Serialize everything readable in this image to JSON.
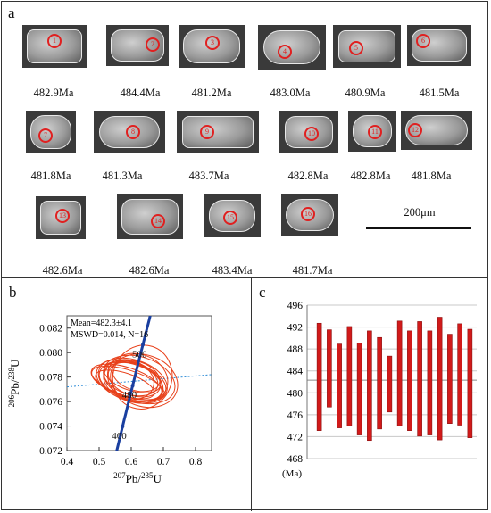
{
  "panels": {
    "a": {
      "label": "a",
      "grains": [
        {
          "id": "1",
          "age": "482.9Ma"
        },
        {
          "id": "2",
          "age": "484.4Ma"
        },
        {
          "id": "3",
          "age": "481.2Ma"
        },
        {
          "id": "4",
          "age": "483.0Ma"
        },
        {
          "id": "5",
          "age": "480.9Ma"
        },
        {
          "id": "6",
          "age": "481.5Ma"
        },
        {
          "id": "7",
          "age": "481.8Ma"
        },
        {
          "id": "8",
          "age": "481.3Ma"
        },
        {
          "id": "9",
          "age": "483.7Ma"
        },
        {
          "id": "10",
          "age": "482.8Ma"
        },
        {
          "id": "11",
          "age": "482.8Ma"
        },
        {
          "id": "12",
          "age": "481.8Ma"
        },
        {
          "id": "13",
          "age": "482.6Ma"
        },
        {
          "id": "14",
          "age": "482.6Ma"
        },
        {
          "id": "15",
          "age": "483.4Ma"
        },
        {
          "id": "16",
          "age": "481.7Ma"
        }
      ],
      "scale_label": "200μm"
    },
    "b": {
      "label": "b"
    },
    "c": {
      "label": "c"
    }
  },
  "chart_data": [
    {
      "type": "scatter",
      "subtype": "concordia",
      "xlabel_sup": "207",
      "xlabel_main": "Pb/",
      "xlabel_sup2": "235",
      "xlabel_end": "U",
      "ylabel_sup": "206",
      "ylabel_main": "Pb/",
      "ylabel_sup2": "238",
      "ylabel_end": "U",
      "xlim": [
        0.4,
        0.85
      ],
      "ylim": [
        0.072,
        0.083
      ],
      "xticks": [
        "0.4",
        "0.5",
        "0.6",
        "0.7",
        "0.8"
      ],
      "yticks": [
        "0.072",
        "0.074",
        "0.076",
        "0.078",
        "0.080",
        "0.082"
      ],
      "annotation_line1": "Mean=482.3±4.1",
      "annotation_line2": "MSWD=0.014, N=16",
      "concordia_ages": [
        "460",
        "480",
        "500"
      ],
      "concordia_color": "#1a3fa0",
      "ellipse_color": "#e8401a",
      "ellipses": [
        {
          "x": 0.595,
          "y": 0.0777,
          "rx": 0.06,
          "ry": 0.0028
        },
        {
          "x": 0.62,
          "y": 0.0779,
          "rx": 0.075,
          "ry": 0.0025
        },
        {
          "x": 0.585,
          "y": 0.0776,
          "rx": 0.045,
          "ry": 0.003
        },
        {
          "x": 0.61,
          "y": 0.0778,
          "rx": 0.05,
          "ry": 0.0022
        },
        {
          "x": 0.6,
          "y": 0.0776,
          "rx": 0.055,
          "ry": 0.0027
        },
        {
          "x": 0.635,
          "y": 0.078,
          "rx": 0.1,
          "ry": 0.0024
        },
        {
          "x": 0.59,
          "y": 0.0775,
          "rx": 0.04,
          "ry": 0.0031
        },
        {
          "x": 0.605,
          "y": 0.0777,
          "rx": 0.065,
          "ry": 0.0029
        },
        {
          "x": 0.615,
          "y": 0.0781,
          "rx": 0.045,
          "ry": 0.002
        },
        {
          "x": 0.58,
          "y": 0.0774,
          "rx": 0.035,
          "ry": 0.0025
        },
        {
          "x": 0.625,
          "y": 0.0778,
          "rx": 0.07,
          "ry": 0.003
        },
        {
          "x": 0.598,
          "y": 0.0779,
          "rx": 0.05,
          "ry": 0.0023
        },
        {
          "x": 0.612,
          "y": 0.0776,
          "rx": 0.055,
          "ry": 0.0026
        },
        {
          "x": 0.592,
          "y": 0.0778,
          "rx": 0.06,
          "ry": 0.0021
        },
        {
          "x": 0.64,
          "y": 0.0777,
          "rx": 0.08,
          "ry": 0.0028
        },
        {
          "x": 0.603,
          "y": 0.078,
          "rx": 0.042,
          "ry": 0.0024
        }
      ]
    },
    {
      "type": "bar",
      "subtype": "weighted-mean-error-bars",
      "ylim": [
        468,
        496
      ],
      "yticks": [
        "496",
        "492",
        "488",
        "484",
        "480",
        "476",
        "472",
        "468"
      ],
      "unit_label": "(Ma)",
      "bar_color": "#d11a1a",
      "reference_line": 482.3,
      "grid": "horizontal",
      "ranges": [
        [
          473.1,
          492.7
        ],
        [
          477.4,
          491.5
        ],
        [
          473.6,
          488.9
        ],
        [
          474.0,
          492.1
        ],
        [
          472.3,
          489.1
        ],
        [
          471.3,
          491.3
        ],
        [
          473.4,
          490.1
        ],
        [
          476.5,
          486.7
        ],
        [
          474.0,
          493.1
        ],
        [
          473.1,
          491.3
        ],
        [
          472.1,
          493.0
        ],
        [
          472.3,
          491.3
        ],
        [
          471.4,
          493.8
        ],
        [
          474.4,
          490.7
        ],
        [
          474.1,
          492.6
        ],
        [
          471.8,
          491.6
        ]
      ]
    }
  ]
}
